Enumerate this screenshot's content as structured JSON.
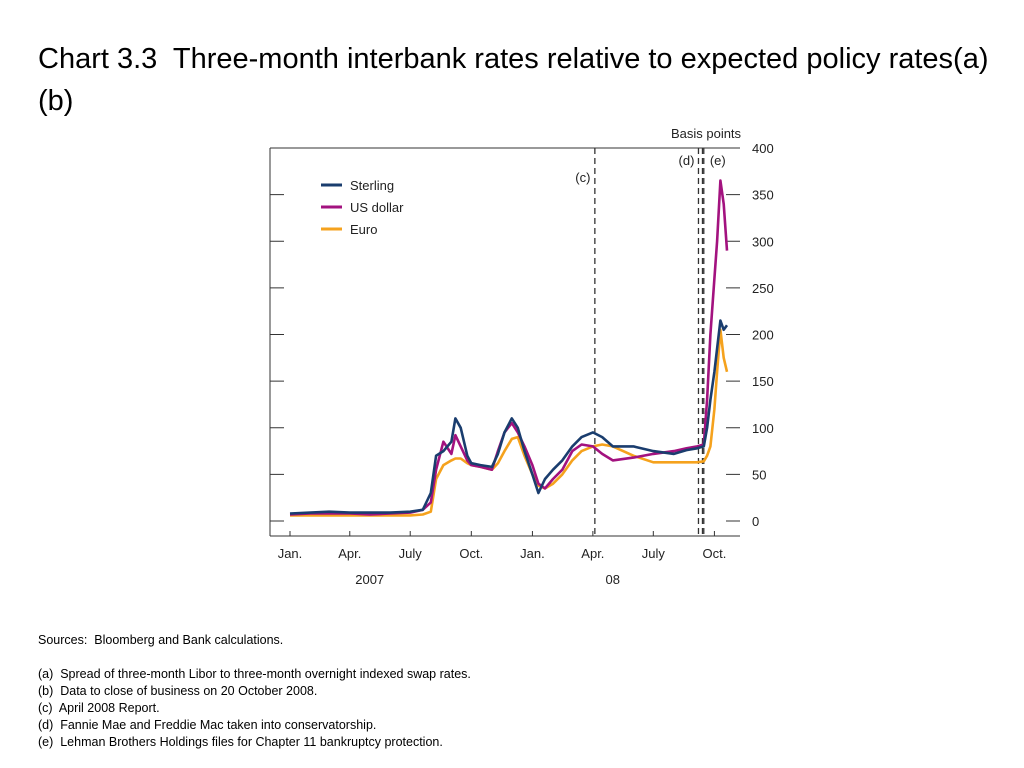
{
  "title": "Chart 3.3  Three-month interbank rates relative to expected policy rates(a)(b)",
  "chart_data": {
    "type": "line",
    "y_unit_label": "Basis points",
    "ylim": [
      0,
      400
    ],
    "yticks": [
      0,
      50,
      100,
      150,
      200,
      250,
      300,
      350,
      400
    ],
    "x_axis": {
      "start": "2007-01-01",
      "end": "2008-11-01",
      "month_labels": [
        {
          "date": "2007-01-01",
          "label": "Jan."
        },
        {
          "date": "2007-04-01",
          "label": "Apr."
        },
        {
          "date": "2007-07-01",
          "label": "July"
        },
        {
          "date": "2007-10-01",
          "label": "Oct."
        },
        {
          "date": "2008-01-01",
          "label": "Jan."
        },
        {
          "date": "2008-04-01",
          "label": "Apr."
        },
        {
          "date": "2008-07-01",
          "label": "July"
        },
        {
          "date": "2008-10-01",
          "label": "Oct."
        }
      ],
      "year_labels": [
        {
          "date": "2007-05-01",
          "label": "2007"
        },
        {
          "date": "2008-05-01",
          "label": "08"
        }
      ]
    },
    "legend": {
      "placement": "top-left"
    },
    "series": [
      {
        "name": "Sterling",
        "color": "#1a3d6e",
        "points": [
          [
            "2007-01-01",
            8
          ],
          [
            "2007-02-01",
            9
          ],
          [
            "2007-03-01",
            10
          ],
          [
            "2007-04-01",
            9
          ],
          [
            "2007-05-01",
            9
          ],
          [
            "2007-06-01",
            9
          ],
          [
            "2007-07-01",
            10
          ],
          [
            "2007-07-20",
            12
          ],
          [
            "2007-08-01",
            30
          ],
          [
            "2007-08-09",
            70
          ],
          [
            "2007-08-20",
            75
          ],
          [
            "2007-09-01",
            85
          ],
          [
            "2007-09-07",
            110
          ],
          [
            "2007-09-15",
            100
          ],
          [
            "2007-09-25",
            70
          ],
          [
            "2007-10-01",
            62
          ],
          [
            "2007-10-15",
            60
          ],
          [
            "2007-11-01",
            58
          ],
          [
            "2007-11-10",
            72
          ],
          [
            "2007-11-20",
            95
          ],
          [
            "2007-12-01",
            110
          ],
          [
            "2007-12-10",
            100
          ],
          [
            "2007-12-20",
            75
          ],
          [
            "2008-01-01",
            50
          ],
          [
            "2008-01-10",
            30
          ],
          [
            "2008-01-20",
            45
          ],
          [
            "2008-02-01",
            55
          ],
          [
            "2008-02-15",
            65
          ],
          [
            "2008-03-01",
            80
          ],
          [
            "2008-03-15",
            90
          ],
          [
            "2008-04-01",
            95
          ],
          [
            "2008-04-15",
            90
          ],
          [
            "2008-05-01",
            80
          ],
          [
            "2008-06-01",
            80
          ],
          [
            "2008-07-01",
            75
          ],
          [
            "2008-08-01",
            72
          ],
          [
            "2008-08-20",
            76
          ],
          [
            "2008-09-05",
            78
          ],
          [
            "2008-09-15",
            80
          ],
          [
            "2008-09-20",
            100
          ],
          [
            "2008-09-25",
            130
          ],
          [
            "2008-10-01",
            160
          ],
          [
            "2008-10-05",
            185
          ],
          [
            "2008-10-10",
            215
          ],
          [
            "2008-10-15",
            205
          ],
          [
            "2008-10-20",
            210
          ]
        ]
      },
      {
        "name": "US dollar",
        "color": "#a3127f",
        "points": [
          [
            "2007-01-01",
            7
          ],
          [
            "2007-02-01",
            8
          ],
          [
            "2007-03-01",
            8
          ],
          [
            "2007-04-01",
            8
          ],
          [
            "2007-05-01",
            7
          ],
          [
            "2007-06-01",
            8
          ],
          [
            "2007-07-01",
            9
          ],
          [
            "2007-07-20",
            12
          ],
          [
            "2007-08-01",
            20
          ],
          [
            "2007-08-09",
            55
          ],
          [
            "2007-08-20",
            85
          ],
          [
            "2007-09-01",
            72
          ],
          [
            "2007-09-07",
            92
          ],
          [
            "2007-09-15",
            80
          ],
          [
            "2007-09-25",
            65
          ],
          [
            "2007-10-01",
            60
          ],
          [
            "2007-10-15",
            58
          ],
          [
            "2007-11-01",
            55
          ],
          [
            "2007-11-10",
            75
          ],
          [
            "2007-11-20",
            95
          ],
          [
            "2007-12-01",
            105
          ],
          [
            "2007-12-10",
            95
          ],
          [
            "2007-12-20",
            80
          ],
          [
            "2008-01-01",
            60
          ],
          [
            "2008-01-10",
            40
          ],
          [
            "2008-01-20",
            35
          ],
          [
            "2008-02-01",
            45
          ],
          [
            "2008-02-15",
            55
          ],
          [
            "2008-03-01",
            75
          ],
          [
            "2008-03-15",
            82
          ],
          [
            "2008-04-01",
            80
          ],
          [
            "2008-04-15",
            72
          ],
          [
            "2008-05-01",
            65
          ],
          [
            "2008-06-01",
            68
          ],
          [
            "2008-07-01",
            72
          ],
          [
            "2008-08-01",
            75
          ],
          [
            "2008-08-20",
            78
          ],
          [
            "2008-09-05",
            80
          ],
          [
            "2008-09-15",
            82
          ],
          [
            "2008-09-20",
            130
          ],
          [
            "2008-09-25",
            200
          ],
          [
            "2008-10-01",
            260
          ],
          [
            "2008-10-05",
            300
          ],
          [
            "2008-10-10",
            365
          ],
          [
            "2008-10-15",
            340
          ],
          [
            "2008-10-20",
            290
          ]
        ]
      },
      {
        "name": "Euro",
        "color": "#f5a21d",
        "points": [
          [
            "2007-01-01",
            6
          ],
          [
            "2007-02-01",
            6
          ],
          [
            "2007-03-01",
            6
          ],
          [
            "2007-04-01",
            6
          ],
          [
            "2007-05-01",
            6
          ],
          [
            "2007-06-01",
            6
          ],
          [
            "2007-07-01",
            6
          ],
          [
            "2007-07-20",
            7
          ],
          [
            "2007-08-01",
            10
          ],
          [
            "2007-08-09",
            45
          ],
          [
            "2007-08-20",
            60
          ],
          [
            "2007-09-01",
            65
          ],
          [
            "2007-09-07",
            67
          ],
          [
            "2007-09-15",
            67
          ],
          [
            "2007-09-25",
            62
          ],
          [
            "2007-10-01",
            60
          ],
          [
            "2007-10-15",
            58
          ],
          [
            "2007-11-01",
            55
          ],
          [
            "2007-11-10",
            62
          ],
          [
            "2007-11-20",
            75
          ],
          [
            "2007-12-01",
            88
          ],
          [
            "2007-12-10",
            90
          ],
          [
            "2007-12-20",
            70
          ],
          [
            "2008-01-01",
            50
          ],
          [
            "2008-01-10",
            38
          ],
          [
            "2008-01-20",
            35
          ],
          [
            "2008-02-01",
            40
          ],
          [
            "2008-02-15",
            50
          ],
          [
            "2008-03-01",
            65
          ],
          [
            "2008-03-15",
            75
          ],
          [
            "2008-04-01",
            80
          ],
          [
            "2008-04-15",
            82
          ],
          [
            "2008-05-01",
            80
          ],
          [
            "2008-06-01",
            70
          ],
          [
            "2008-07-01",
            63
          ],
          [
            "2008-08-01",
            63
          ],
          [
            "2008-08-20",
            63
          ],
          [
            "2008-09-05",
            63
          ],
          [
            "2008-09-15",
            64
          ],
          [
            "2008-09-20",
            70
          ],
          [
            "2008-09-25",
            80
          ],
          [
            "2008-10-01",
            120
          ],
          [
            "2008-10-05",
            160
          ],
          [
            "2008-10-10",
            205
          ],
          [
            "2008-10-15",
            175
          ],
          [
            "2008-10-20",
            160
          ]
        ]
      }
    ],
    "annotations": [
      {
        "label": "(c)",
        "date": "2008-04-04"
      },
      {
        "label": "(d)",
        "date": "2008-09-07"
      },
      {
        "label": "(e)",
        "date": "2008-09-15"
      }
    ]
  },
  "notes": {
    "sources": "Sources:  Bloomberg and Bank calculations.",
    "items": [
      "(a)  Spread of three-month Libor to three-month overnight indexed swap rates.",
      "(b)  Data to close of business on 20 October 2008.",
      "(c)  April 2008 Report.",
      "(d)  Fannie Mae and Freddie Mac taken into conservatorship.",
      "(e)  Lehman Brothers Holdings files for Chapter 11 bankruptcy protection."
    ]
  }
}
